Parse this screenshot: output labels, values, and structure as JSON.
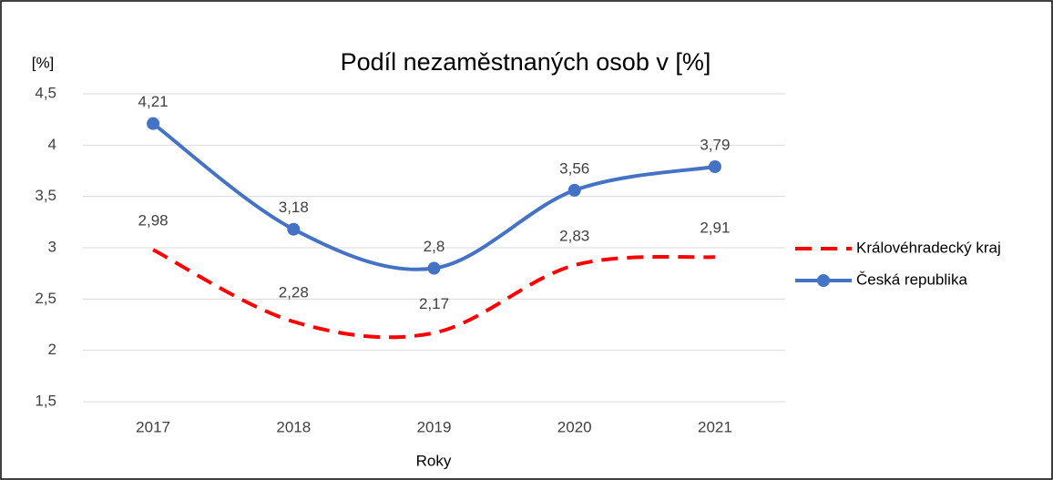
{
  "chart_data": {
    "type": "line",
    "title": "Podíl nezaměstnaných osob v [%]",
    "y_label": "[%]",
    "x_label": "Roky",
    "categories": [
      "2017",
      "2018",
      "2019",
      "2020",
      "2021"
    ],
    "series": [
      {
        "name": "Královéhradecký kraj",
        "color": "#ff0000",
        "dashed": true,
        "markers": false,
        "values": [
          2.98,
          2.28,
          2.17,
          2.83,
          2.91
        ],
        "value_labels": [
          "2,98",
          "2,28",
          "2,17",
          "2,83",
          "2,91"
        ]
      },
      {
        "name": "Česká republika",
        "color": "#4472c4",
        "dashed": false,
        "markers": true,
        "values": [
          4.21,
          3.18,
          2.8,
          3.56,
          3.79
        ],
        "value_labels": [
          "4,21",
          "3,18",
          "2,8",
          "3,56",
          "3,79"
        ]
      }
    ],
    "ylim": [
      1.5,
      4.5
    ],
    "yticks": [
      {
        "value": 1.5,
        "label": "1,5"
      },
      2,
      {
        "value": 2.5,
        "label": "2,5"
      },
      3,
      {
        "value": 3.5,
        "label": "3,5"
      },
      4,
      {
        "value": 4.5,
        "label": "4,5"
      }
    ],
    "grid": true,
    "smooth": true,
    "legend": "right"
  }
}
